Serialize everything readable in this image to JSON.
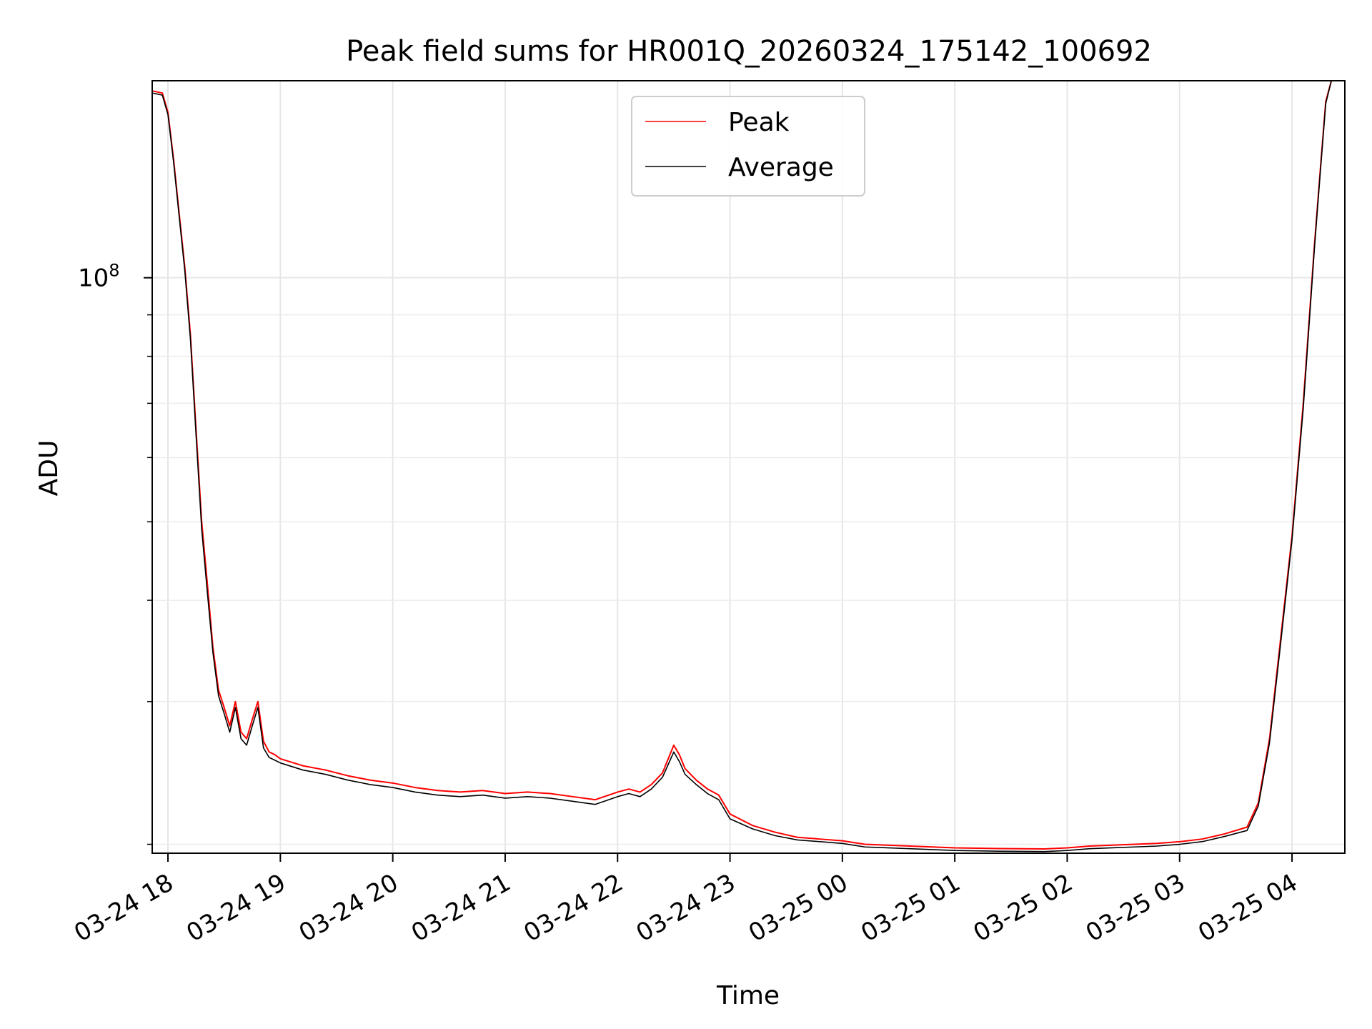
{
  "chart_data": {
    "type": "line",
    "title": "Peak field sums for HR001Q_20260324_175142_100692",
    "xlabel": "Time",
    "ylabel": "ADU",
    "y_scale": "log",
    "ylim": [
      19500000,
      175000000
    ],
    "xlim_hours": [
      -0.14,
      10.47
    ],
    "y_major_ticks": [
      {
        "value": 100000000,
        "mantissa": "10",
        "exponent": "8"
      }
    ],
    "x_ticks": [
      {
        "hour": 0,
        "label": "03-24 18"
      },
      {
        "hour": 1,
        "label": "03-24 19"
      },
      {
        "hour": 2,
        "label": "03-24 20"
      },
      {
        "hour": 3,
        "label": "03-24 21"
      },
      {
        "hour": 4,
        "label": "03-24 22"
      },
      {
        "hour": 5,
        "label": "03-24 23"
      },
      {
        "hour": 6,
        "label": "03-25 00"
      },
      {
        "hour": 7,
        "label": "03-25 01"
      },
      {
        "hour": 8,
        "label": "03-25 02"
      },
      {
        "hour": 9,
        "label": "03-25 03"
      },
      {
        "hour": 10,
        "label": "03-25 04"
      }
    ],
    "grid": true,
    "legend_position": "top-center",
    "x_unit": "hours since 03-24 18:00",
    "series": [
      {
        "name": "Peak",
        "color": "#ff0000",
        "x": [
          -0.14,
          -0.05,
          0.0,
          0.05,
          0.1,
          0.15,
          0.2,
          0.25,
          0.3,
          0.35,
          0.4,
          0.45,
          0.5,
          0.55,
          0.6,
          0.65,
          0.7,
          0.75,
          0.8,
          0.85,
          0.9,
          0.95,
          1.0,
          1.2,
          1.4,
          1.6,
          1.8,
          2.0,
          2.2,
          2.4,
          2.6,
          2.8,
          3.0,
          3.2,
          3.4,
          3.6,
          3.8,
          4.0,
          4.1,
          4.2,
          4.3,
          4.4,
          4.5,
          4.55,
          4.6,
          4.7,
          4.8,
          4.9,
          5.0,
          5.2,
          5.4,
          5.6,
          5.8,
          6.0,
          6.2,
          6.4,
          6.6,
          6.8,
          7.0,
          7.2,
          7.4,
          7.6,
          7.8,
          8.0,
          8.2,
          8.4,
          8.6,
          8.8,
          9.0,
          9.2,
          9.4,
          9.6,
          9.7,
          9.8,
          9.9,
          10.0,
          10.1,
          10.2,
          10.25,
          10.3,
          10.35
        ],
        "y": [
          170000000,
          169000000,
          160000000,
          140000000,
          120000000,
          103000000,
          85000000,
          65000000,
          50000000,
          42000000,
          35000000,
          31000000,
          29500000,
          28000000,
          30000000,
          27500000,
          27000000,
          28500000,
          30000000,
          26800000,
          26000000,
          25800000,
          25500000,
          25000000,
          24700000,
          24300000,
          24000000,
          23800000,
          23500000,
          23300000,
          23200000,
          23300000,
          23100000,
          23200000,
          23100000,
          22900000,
          22700000,
          23200000,
          23400000,
          23200000,
          23700000,
          24500000,
          26500000,
          25800000,
          24800000,
          24000000,
          23400000,
          23000000,
          21800000,
          21100000,
          20700000,
          20400000,
          20300000,
          20200000,
          20000000,
          19950000,
          19900000,
          19850000,
          19800000,
          19780000,
          19760000,
          19750000,
          19740000,
          19800000,
          19900000,
          19950000,
          20000000,
          20050000,
          20150000,
          20300000,
          20600000,
          21000000,
          22500000,
          27000000,
          36000000,
          48000000,
          70000000,
          110000000,
          135000000,
          165000000,
          175000000
        ]
      },
      {
        "name": "Average",
        "color": "#000000",
        "x": [
          -0.14,
          -0.05,
          0.0,
          0.05,
          0.1,
          0.15,
          0.2,
          0.25,
          0.3,
          0.35,
          0.4,
          0.45,
          0.5,
          0.55,
          0.6,
          0.65,
          0.7,
          0.75,
          0.8,
          0.85,
          0.9,
          0.95,
          1.0,
          1.2,
          1.4,
          1.6,
          1.8,
          2.0,
          2.2,
          2.4,
          2.6,
          2.8,
          3.0,
          3.2,
          3.4,
          3.6,
          3.8,
          4.0,
          4.1,
          4.2,
          4.3,
          4.4,
          4.5,
          4.55,
          4.6,
          4.7,
          4.8,
          4.9,
          5.0,
          5.2,
          5.4,
          5.6,
          5.8,
          6.0,
          6.2,
          6.4,
          6.6,
          6.8,
          7.0,
          7.2,
          7.4,
          7.6,
          7.8,
          8.0,
          8.2,
          8.4,
          8.6,
          8.8,
          9.0,
          9.2,
          9.4,
          9.6,
          9.7,
          9.8,
          9.9,
          10.0,
          10.1,
          10.2,
          10.25,
          10.3,
          10.35
        ],
        "y": [
          169000000,
          168000000,
          159000000,
          139000000,
          119000000,
          102000000,
          84000000,
          64000000,
          49000000,
          41000000,
          34500000,
          30500000,
          29000000,
          27500000,
          29500000,
          27000000,
          26500000,
          28000000,
          29500000,
          26300000,
          25600000,
          25400000,
          25200000,
          24700000,
          24400000,
          24000000,
          23700000,
          23500000,
          23200000,
          23000000,
          22900000,
          23000000,
          22800000,
          22900000,
          22800000,
          22600000,
          22400000,
          22900000,
          23100000,
          22900000,
          23400000,
          24200000,
          26000000,
          25300000,
          24400000,
          23700000,
          23100000,
          22700000,
          21500000,
          20900000,
          20500000,
          20250000,
          20150000,
          20050000,
          19850000,
          19800000,
          19750000,
          19700000,
          19650000,
          19630000,
          19610000,
          19600000,
          19590000,
          19650000,
          19750000,
          19800000,
          19850000,
          19900000,
          20000000,
          20150000,
          20450000,
          20800000,
          22300000,
          26700000,
          35500000,
          47500000,
          69000000,
          109000000,
          134000000,
          164000000,
          175000000
        ]
      }
    ]
  }
}
